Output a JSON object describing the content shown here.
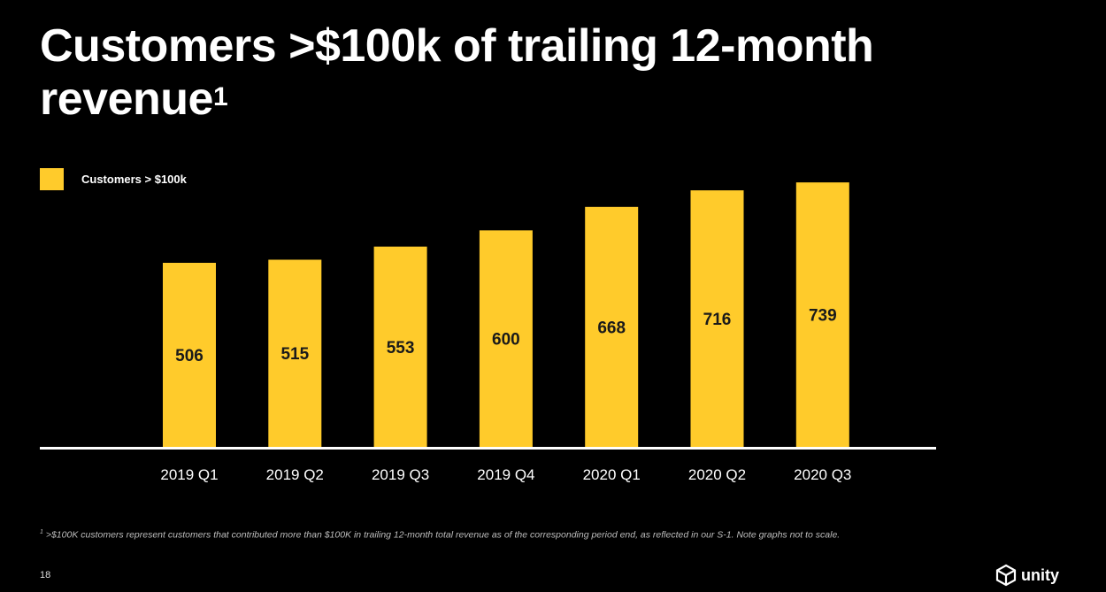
{
  "title": {
    "text": "Customers >$100k of trailing 12-month revenue",
    "superscript": "1"
  },
  "legend": {
    "label": "Customers > $100k",
    "color": "#FFCB2B"
  },
  "chart_data": {
    "type": "bar",
    "categories": [
      "2019 Q1",
      "2019 Q2",
      "2019 Q3",
      "2019 Q4",
      "2020 Q1",
      "2020 Q2",
      "2020 Q3"
    ],
    "series": [
      {
        "name": "Customers > $100k",
        "values": [
          506,
          515,
          553,
          600,
          668,
          716,
          739
        ],
        "color": "#FFCB2B"
      }
    ],
    "data_labels": [
      "506",
      "515",
      "553",
      "600",
      "668",
      "716",
      "739"
    ],
    "axis_color": "#FFFFFF",
    "title": "Customers >$100k of trailing 12-month revenue",
    "xlabel": "",
    "ylabel": ""
  },
  "footnote": {
    "marker": "1",
    "text": " >$100K customers represent customers that contributed more than $100K in trailing 12-month total revenue as of the corresponding period end, as reflected in our S-1. Note graphs not to scale."
  },
  "page_number": "18",
  "logo": {
    "text": "unity",
    "icon": "unity-cube-icon"
  }
}
